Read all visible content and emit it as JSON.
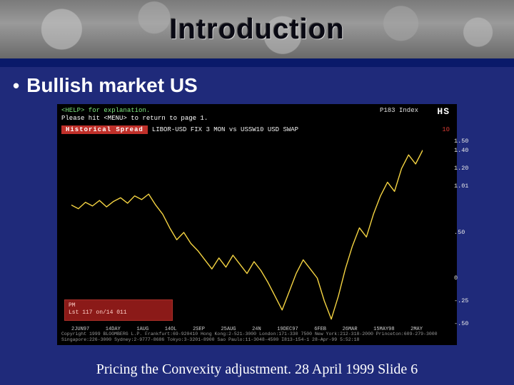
{
  "slide": {
    "title": "Introduction",
    "bullet": "Bullish market US",
    "footer": "Pricing the Convexity adjustment. 28 April 1999  Slide 6",
    "background_color": "#1f2a7a"
  },
  "terminal": {
    "help_line": "<HELP> for explanation.",
    "index_label": "P183 Index",
    "hs_label": "HS",
    "menu_line": "Please hit <MENU> to return to page 1.",
    "spread_label": "Historical Spread",
    "spread_desc": "LIBOR-USD FIX  3 MON vs USSW10  USD SWAP",
    "spread_ten": "10",
    "legend_line1": "PM",
    "legend_line2": "Lst 117 on/14 011",
    "bottom_line1": "Copyright 1999 BLOOMBERG L.P.  Frankfurt:69-920410  Hong Kong:2-521-3000  London:171-330 7500  New York:212-318-2000  Princeton:609-279-3000",
    "bottom_line2": "Singapore:226-3000  Sydney:2-9777-8686  Tokyo:3-3201-8900  Sao Paulo:11-3048-4500  I813-154-1 28-Apr-99 5:52:18",
    "background_color": "#000000",
    "text_color": "#f5f5f5",
    "accent_green": "#7fe87f",
    "accent_red": "#c0302a"
  },
  "chart": {
    "type": "line",
    "line_color": "#f5d442",
    "line_width": 1.4,
    "background_color": "#000000",
    "ylim": [
      -0.5,
      1.5
    ],
    "ytick_labels": [
      "1.50",
      "1.40",
      "1.20",
      "1.01",
      ".50",
      "0",
      "-.25",
      "-.50"
    ],
    "ytick_values": [
      1.5,
      1.4,
      1.2,
      1.01,
      0.5,
      0.0,
      -0.25,
      -0.5
    ],
    "x_labels": [
      "2JUN97",
      "14DAY",
      "1AUG",
      "14OL",
      "2SEP",
      "25AUG",
      "24N",
      "19DEC97",
      "6FEB",
      "26MAR",
      "15MAY98",
      "2MAY"
    ],
    "series": [
      {
        "x": 0.0,
        "y": 0.8
      },
      {
        "x": 0.02,
        "y": 0.76
      },
      {
        "x": 0.04,
        "y": 0.83
      },
      {
        "x": 0.06,
        "y": 0.79
      },
      {
        "x": 0.08,
        "y": 0.85
      },
      {
        "x": 0.1,
        "y": 0.78
      },
      {
        "x": 0.12,
        "y": 0.84
      },
      {
        "x": 0.14,
        "y": 0.88
      },
      {
        "x": 0.16,
        "y": 0.82
      },
      {
        "x": 0.18,
        "y": 0.9
      },
      {
        "x": 0.2,
        "y": 0.86
      },
      {
        "x": 0.22,
        "y": 0.92
      },
      {
        "x": 0.24,
        "y": 0.8
      },
      {
        "x": 0.26,
        "y": 0.7
      },
      {
        "x": 0.28,
        "y": 0.55
      },
      {
        "x": 0.3,
        "y": 0.42
      },
      {
        "x": 0.32,
        "y": 0.5
      },
      {
        "x": 0.34,
        "y": 0.38
      },
      {
        "x": 0.36,
        "y": 0.3
      },
      {
        "x": 0.38,
        "y": 0.2
      },
      {
        "x": 0.4,
        "y": 0.1
      },
      {
        "x": 0.42,
        "y": 0.22
      },
      {
        "x": 0.44,
        "y": 0.12
      },
      {
        "x": 0.46,
        "y": 0.25
      },
      {
        "x": 0.48,
        "y": 0.15
      },
      {
        "x": 0.5,
        "y": 0.05
      },
      {
        "x": 0.52,
        "y": 0.18
      },
      {
        "x": 0.54,
        "y": 0.08
      },
      {
        "x": 0.56,
        "y": -0.05
      },
      {
        "x": 0.58,
        "y": -0.2
      },
      {
        "x": 0.6,
        "y": -0.35
      },
      {
        "x": 0.62,
        "y": -0.15
      },
      {
        "x": 0.64,
        "y": 0.05
      },
      {
        "x": 0.66,
        "y": 0.2
      },
      {
        "x": 0.68,
        "y": 0.1
      },
      {
        "x": 0.7,
        "y": 0.0
      },
      {
        "x": 0.72,
        "y": -0.25
      },
      {
        "x": 0.74,
        "y": -0.45
      },
      {
        "x": 0.76,
        "y": -0.2
      },
      {
        "x": 0.78,
        "y": 0.1
      },
      {
        "x": 0.8,
        "y": 0.35
      },
      {
        "x": 0.82,
        "y": 0.55
      },
      {
        "x": 0.84,
        "y": 0.45
      },
      {
        "x": 0.86,
        "y": 0.7
      },
      {
        "x": 0.88,
        "y": 0.9
      },
      {
        "x": 0.9,
        "y": 1.05
      },
      {
        "x": 0.92,
        "y": 0.95
      },
      {
        "x": 0.94,
        "y": 1.2
      },
      {
        "x": 0.96,
        "y": 1.35
      },
      {
        "x": 0.98,
        "y": 1.25
      },
      {
        "x": 1.0,
        "y": 1.4
      }
    ]
  }
}
